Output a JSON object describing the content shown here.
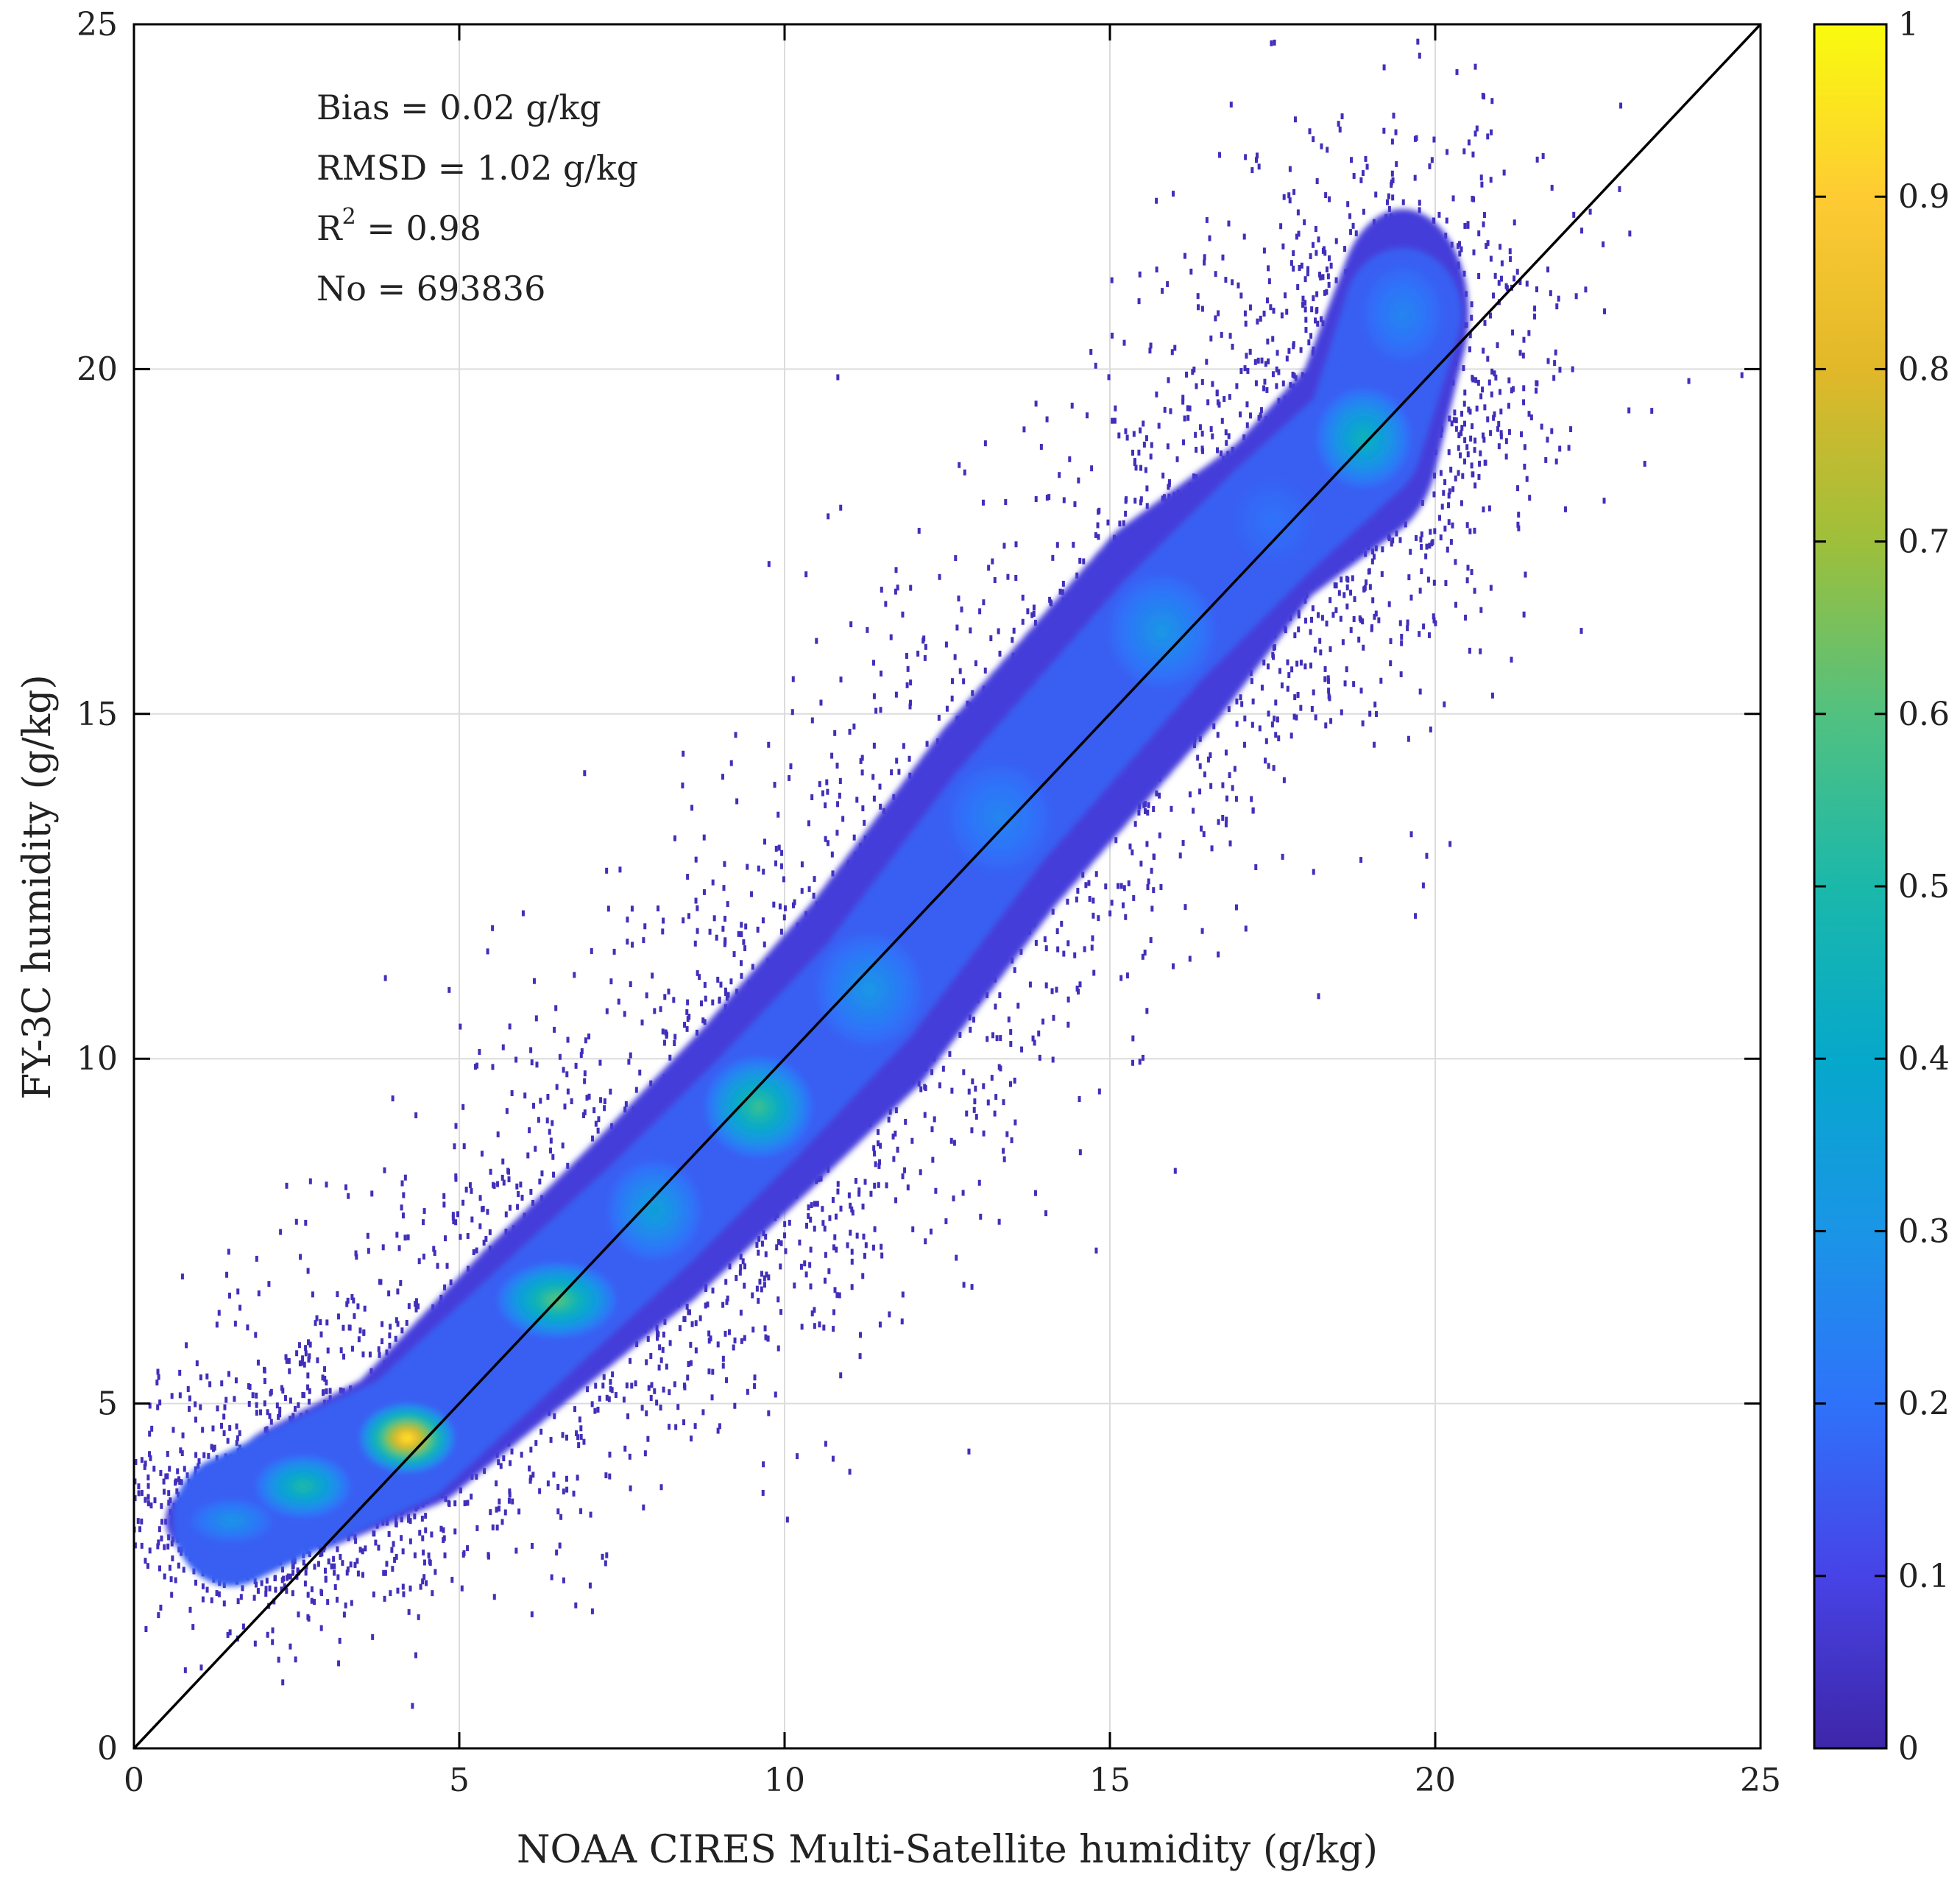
{
  "chart_data": {
    "type": "scatter",
    "subtype": "density-scatter",
    "title": "",
    "xlabel": "NOAA CIRES Multi-Satellite humidity (g/kg)",
    "ylabel": "FY-3C humidity (g/kg)",
    "xlim": [
      0,
      25
    ],
    "ylim": [
      0,
      25
    ],
    "x_ticks": [
      "0",
      "5",
      "10",
      "15",
      "20",
      "25"
    ],
    "y_ticks": [
      "0",
      "5",
      "10",
      "15",
      "20",
      "25"
    ],
    "grid": true,
    "reference_line": {
      "name": "1:1 line",
      "from": [
        0,
        0
      ],
      "to": [
        25,
        25
      ]
    },
    "statistics": {
      "bias_label": "Bias = 0.02 g/kg",
      "rmsd_label": "RMSD = 1.02 g/kg",
      "r2_prefix": "R",
      "r2_exponent": "2",
      "r2_value": " = 0.98",
      "no_label": "No = 693836"
    },
    "colorbar": {
      "range": [
        0,
        1
      ],
      "ticks": [
        "0",
        "0.1",
        "0.2",
        "0.3",
        "0.4",
        "0.5",
        "0.6",
        "0.7",
        "0.8",
        "0.9",
        "1"
      ],
      "colormap": [
        "#3e26a8",
        "#4743e6",
        "#2f72fa",
        "#1a95e6",
        "#06a8cb",
        "#1bb8aa",
        "#52c180",
        "#9ebf3a",
        "#e1b829",
        "#fecb33",
        "#f9fb0e"
      ]
    },
    "density_clusters": [
      {
        "x": 1.5,
        "y": 3.3,
        "sx": 0.7,
        "sy": 0.35,
        "density": 0.3
      },
      {
        "x": 2.6,
        "y": 3.8,
        "sx": 0.8,
        "sy": 0.5,
        "density": 0.5
      },
      {
        "x": 4.2,
        "y": 4.5,
        "sx": 0.8,
        "sy": 0.55,
        "density": 0.95
      },
      {
        "x": 6.5,
        "y": 6.5,
        "sx": 1.0,
        "sy": 0.6,
        "density": 0.6
      },
      {
        "x": 8.0,
        "y": 7.8,
        "sx": 0.8,
        "sy": 0.8,
        "density": 0.35
      },
      {
        "x": 9.6,
        "y": 9.3,
        "sx": 0.9,
        "sy": 0.8,
        "density": 0.55
      },
      {
        "x": 11.3,
        "y": 11.0,
        "sx": 0.9,
        "sy": 0.9,
        "density": 0.3
      },
      {
        "x": 13.3,
        "y": 13.5,
        "sx": 0.9,
        "sy": 0.9,
        "density": 0.25
      },
      {
        "x": 15.8,
        "y": 16.2,
        "sx": 0.9,
        "sy": 0.9,
        "density": 0.3
      },
      {
        "x": 17.5,
        "y": 17.8,
        "sx": 0.7,
        "sy": 0.7,
        "density": 0.2
      },
      {
        "x": 18.9,
        "y": 19.0,
        "sx": 0.8,
        "sy": 0.8,
        "density": 0.45
      },
      {
        "x": 19.5,
        "y": 20.8,
        "sx": 0.7,
        "sy": 0.8,
        "density": 0.25
      }
    ]
  }
}
